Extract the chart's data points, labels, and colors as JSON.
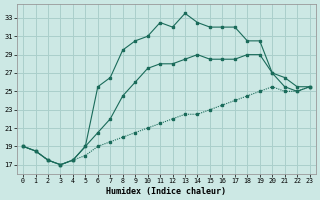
{
  "xlabel": "Humidex (Indice chaleur)",
  "background_color": "#cce8e4",
  "grid_color": "#aacfcb",
  "line_color": "#1a6b5a",
  "xlim": [
    -0.5,
    23.5
  ],
  "ylim": [
    16,
    34.5
  ],
  "yticks": [
    17,
    19,
    21,
    23,
    25,
    27,
    29,
    31,
    33
  ],
  "xticks": [
    0,
    1,
    2,
    3,
    4,
    5,
    6,
    7,
    8,
    9,
    10,
    11,
    12,
    13,
    14,
    15,
    16,
    17,
    18,
    19,
    20,
    21,
    22,
    23
  ],
  "series1_x": [
    0,
    1,
    2,
    3,
    4,
    5,
    6,
    7,
    8,
    9,
    10,
    11,
    12,
    13,
    14,
    15,
    16,
    17,
    18,
    19,
    20,
    21,
    22,
    23
  ],
  "series1_y": [
    19.0,
    18.5,
    17.5,
    17.0,
    17.5,
    19.0,
    25.5,
    26.5,
    29.5,
    30.5,
    31.0,
    32.5,
    32.0,
    33.5,
    32.5,
    32.0,
    32.0,
    32.0,
    30.5,
    30.5,
    27.0,
    26.5,
    25.5,
    25.5
  ],
  "series2_x": [
    0,
    1,
    2,
    3,
    4,
    5,
    6,
    7,
    8,
    9,
    10,
    11,
    12,
    13,
    14,
    15,
    16,
    17,
    18,
    19,
    20,
    21,
    22,
    23
  ],
  "series2_y": [
    19.0,
    18.5,
    17.5,
    17.0,
    17.5,
    19.0,
    20.5,
    22.0,
    24.5,
    26.0,
    27.5,
    28.0,
    28.0,
    28.5,
    29.0,
    28.5,
    28.5,
    28.5,
    29.0,
    29.0,
    27.0,
    25.5,
    25.0,
    25.5
  ],
  "series3_x": [
    0,
    1,
    2,
    3,
    4,
    5,
    6,
    7,
    8,
    9,
    10,
    11,
    12,
    13,
    14,
    15,
    16,
    17,
    18,
    19,
    20,
    21,
    22,
    23
  ],
  "series3_y": [
    19.0,
    18.5,
    17.5,
    17.0,
    17.5,
    18.0,
    19.0,
    19.5,
    20.0,
    20.5,
    21.0,
    21.5,
    22.0,
    22.5,
    22.5,
    23.0,
    23.5,
    24.0,
    24.5,
    25.0,
    25.5,
    25.0,
    25.0,
    25.5
  ]
}
